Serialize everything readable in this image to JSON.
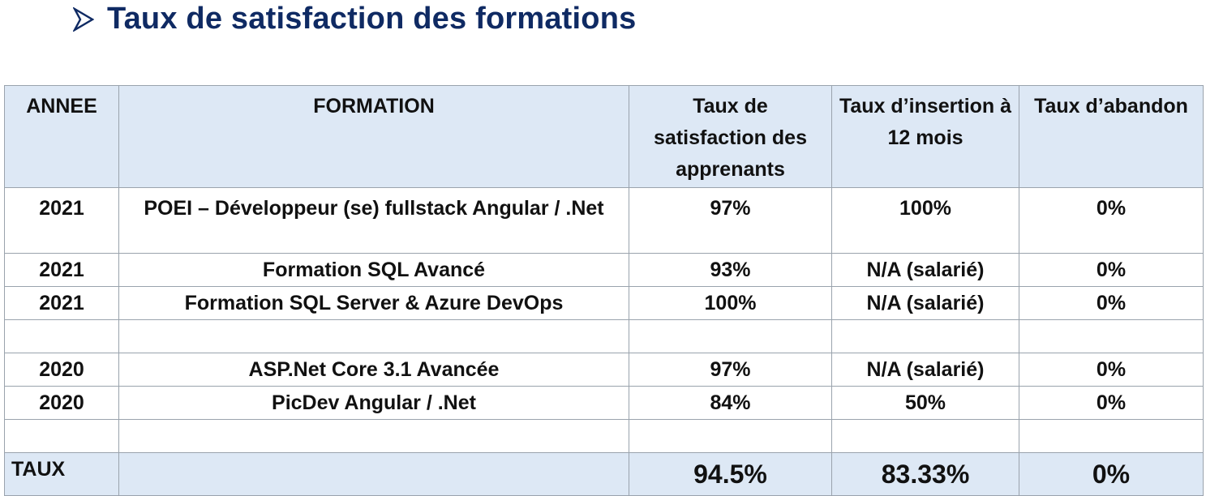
{
  "title": "Taux de satisfaction des formations",
  "colors": {
    "title": "#0f2a63",
    "header_bg": "#dde8f5",
    "border": "#9aa3ad"
  },
  "table": {
    "headers": {
      "annee": "ANNEE",
      "formation": "FORMATION",
      "satisfaction": "Taux de satisfaction des apprenants",
      "insertion": "Taux d’insertion à 12 mois",
      "abandon": "Taux d’abandon"
    },
    "rows": [
      {
        "annee": "2021",
        "formation": "POEI – Développeur (se) fullstack Angular / .Net",
        "satisfaction": "97%",
        "insertion": "100%",
        "abandon": "0%"
      },
      {
        "annee": "2021",
        "formation": "Formation SQL Avancé",
        "satisfaction": "93%",
        "insertion": "N/A (salarié)",
        "abandon": "0%"
      },
      {
        "annee": "2021",
        "formation": "Formation SQL Server & Azure DevOps",
        "satisfaction": "100%",
        "insertion": "N/A (salarié)",
        "abandon": "0%"
      },
      {
        "annee": "",
        "formation": "",
        "satisfaction": "",
        "insertion": "",
        "abandon": ""
      },
      {
        "annee": "2020",
        "formation": "ASP.Net Core 3.1 Avancée",
        "satisfaction": "97%",
        "insertion": "N/A (salarié)",
        "abandon": "0%"
      },
      {
        "annee": "2020",
        "formation": "PicDev Angular / .Net",
        "satisfaction": "84%",
        "insertion": "50%",
        "abandon": "0%"
      },
      {
        "annee": "",
        "formation": "",
        "satisfaction": "",
        "insertion": "",
        "abandon": ""
      }
    ],
    "total": {
      "label": "TAUX",
      "satisfaction": "94.5%",
      "insertion": "83.33%",
      "abandon": "0%"
    }
  }
}
